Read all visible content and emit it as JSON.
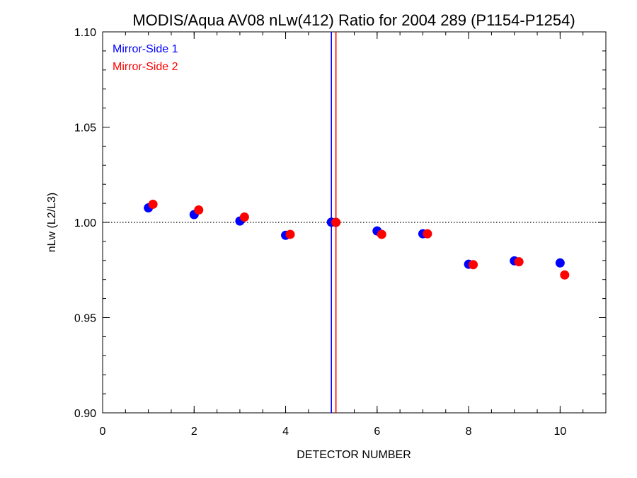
{
  "chart_data": {
    "type": "scatter",
    "title": "MODIS/Aqua AV08 nLw(412) Ratio for 2004 289 (P1154-P1254)",
    "xlabel": "DETECTOR NUMBER",
    "ylabel": "nLw (L2/L3)",
    "xlim": [
      0,
      11
    ],
    "ylim": [
      0.9,
      1.1
    ],
    "x_ticks": [
      0,
      2,
      4,
      6,
      8,
      10
    ],
    "x_tick_labels": [
      "0",
      "2",
      "4",
      "6",
      "8",
      "10"
    ],
    "y_ticks": [
      0.9,
      0.95,
      1.0,
      1.05,
      1.1
    ],
    "y_tick_labels": [
      "0.90",
      "0.95",
      "1.00",
      "1.05",
      "1.10"
    ],
    "x_minor_step": 0.5,
    "y_minor_step": 0.01,
    "reference_line": {
      "y": 1.0,
      "style": "dotted",
      "color": "#000000"
    },
    "vertical_lines": [
      {
        "x": 5.0,
        "color": "#0000ff"
      },
      {
        "x": 5.1,
        "color": "#ff0000"
      }
    ],
    "legend_position": "top-left",
    "series": [
      {
        "name": "Mirror-Side 1",
        "color": "#0000ff",
        "x": [
          1,
          2,
          3,
          4,
          5,
          6,
          7,
          8,
          9,
          10
        ],
        "y": [
          1.0076,
          1.0041,
          1.0007,
          0.9932,
          1.0001,
          0.9955,
          0.994,
          0.978,
          0.9798,
          0.9787
        ]
      },
      {
        "name": "Mirror-Side 2",
        "color": "#ff0000",
        "x": [
          1.1,
          2.1,
          3.1,
          4.1,
          5.1,
          6.1,
          7.1,
          8.1,
          9.1,
          10.1
        ],
        "y": [
          1.0095,
          1.0065,
          1.0028,
          0.9937,
          1.0,
          0.9937,
          0.994,
          0.9778,
          0.9793,
          0.9724
        ]
      }
    ]
  }
}
